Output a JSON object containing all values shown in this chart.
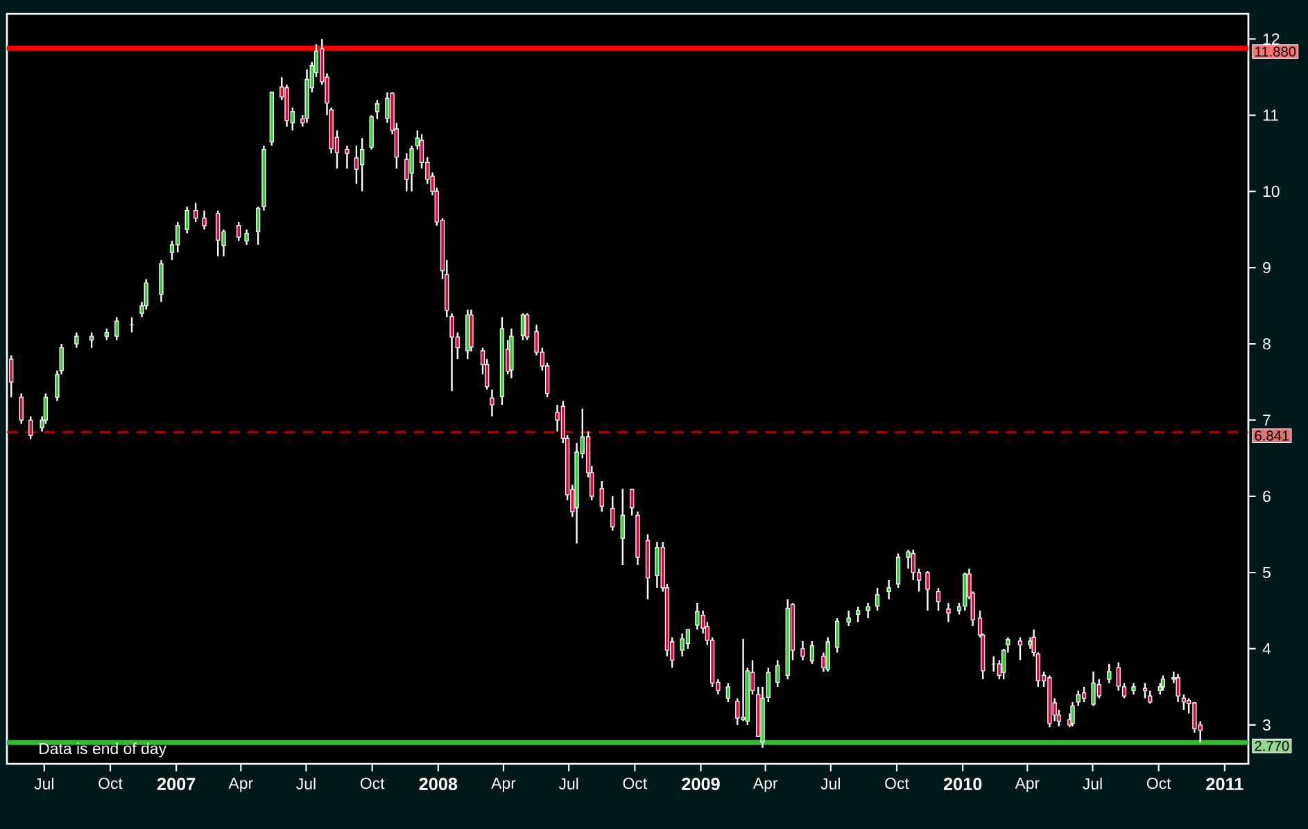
{
  "chart_data": {
    "type": "candlestick",
    "x": [
      "2006-05-16",
      "2006-05-30",
      "2006-06-12",
      "2006-06-28",
      "2006-07-03",
      "2006-07-19",
      "2006-07-25",
      "2006-08-15",
      "2006-09-05",
      "2006-09-26",
      "2006-10-10",
      "2006-10-31",
      "2006-11-14",
      "2006-11-20",
      "2006-12-11",
      "2006-12-26",
      "2007-01-03",
      "2007-01-16",
      "2007-01-28",
      "2007-02-09",
      "2007-02-28",
      "2007-03-08",
      "2007-03-29",
      "2007-04-09",
      "2007-04-25",
      "2007-05-03",
      "2007-05-14",
      "2007-05-28",
      "2007-06-04",
      "2007-06-12",
      "2007-06-26",
      "2007-07-02",
      "2007-07-09",
      "2007-07-15",
      "2007-07-23",
      "2007-07-30",
      "2007-08-05",
      "2007-08-13",
      "2007-08-27",
      "2007-09-09",
      "2007-09-17",
      "2007-09-30",
      "2007-10-08",
      "2007-10-22",
      "2007-10-29",
      "2007-11-04",
      "2007-11-18",
      "2007-11-25",
      "2007-12-03",
      "2007-12-09",
      "2007-12-17",
      "2007-12-24",
      "2007-12-30",
      "2008-01-07",
      "2008-01-13",
      "2008-01-20",
      "2008-01-28",
      "2008-02-11",
      "2008-02-16",
      "2008-03-03",
      "2008-03-09",
      "2008-03-16",
      "2008-03-30",
      "2008-04-07",
      "2008-04-12",
      "2008-04-28",
      "2008-05-04",
      "2008-05-17",
      "2008-05-25",
      "2008-06-01",
      "2008-06-15",
      "2008-06-23",
      "2008-06-29",
      "2008-07-06",
      "2008-07-12",
      "2008-07-20",
      "2008-07-28",
      "2008-08-02",
      "2008-08-16",
      "2008-08-31",
      "2008-09-14",
      "2008-09-27",
      "2008-10-05",
      "2008-10-19",
      "2008-11-01",
      "2008-11-09",
      "2008-11-15",
      "2008-11-22",
      "2008-12-06",
      "2008-12-14",
      "2008-12-27",
      "2009-01-04",
      "2009-01-10",
      "2009-01-17",
      "2009-01-25",
      "2009-02-08",
      "2009-02-21",
      "2009-03-01",
      "2009-03-07",
      "2009-03-14",
      "2009-03-22",
      "2009-03-28",
      "2009-04-05",
      "2009-04-18",
      "2009-05-02",
      "2009-05-09",
      "2009-05-23",
      "2009-06-05",
      "2009-06-21",
      "2009-06-27",
      "2009-07-10",
      "2009-07-26",
      "2009-08-08",
      "2009-08-22",
      "2009-09-04",
      "2009-09-20",
      "2009-10-03",
      "2009-10-17",
      "2009-10-24",
      "2009-11-01",
      "2009-11-13",
      "2009-11-28",
      "2009-12-12",
      "2009-12-27",
      "2010-01-04",
      "2010-01-10",
      "2010-01-15",
      "2010-01-25",
      "2010-01-29",
      "2010-02-13",
      "2010-02-21",
      "2010-02-27",
      "2010-03-05",
      "2010-03-22",
      "2010-04-05",
      "2010-04-10",
      "2010-04-16",
      "2010-04-24",
      "2010-05-02",
      "2010-05-09",
      "2010-05-15",
      "2010-05-30",
      "2010-06-03",
      "2010-06-11",
      "2010-06-19",
      "2010-07-02",
      "2010-07-10",
      "2010-07-24",
      "2010-08-06",
      "2010-08-14",
      "2010-08-27",
      "2010-09-12",
      "2010-09-19",
      "2010-10-03",
      "2010-10-07",
      "2010-10-22",
      "2010-10-28",
      "2010-11-05",
      "2010-11-12",
      "2010-11-20",
      "2010-11-28"
    ],
    "ohlc": [
      [
        7.8,
        7.85,
        7.3,
        7.5
      ],
      [
        7.3,
        7.35,
        6.95,
        7.0
      ],
      [
        7.0,
        7.05,
        6.75,
        6.8
      ],
      [
        6.9,
        7.05,
        6.85,
        7.0
      ],
      [
        7.0,
        7.35,
        6.95,
        7.3
      ],
      [
        7.3,
        7.65,
        7.25,
        7.6
      ],
      [
        7.65,
        8.0,
        7.6,
        7.95
      ],
      [
        8.0,
        8.15,
        7.95,
        8.1
      ],
      [
        8.05,
        8.15,
        7.95,
        8.1
      ],
      [
        8.1,
        8.2,
        8.05,
        8.15
      ],
      [
        8.1,
        8.35,
        8.05,
        8.3
      ],
      [
        8.25,
        8.35,
        8.15,
        8.25
      ],
      [
        8.4,
        8.55,
        8.35,
        8.5
      ],
      [
        8.5,
        8.85,
        8.45,
        8.8
      ],
      [
        8.65,
        9.1,
        8.55,
        9.05
      ],
      [
        9.2,
        9.35,
        9.1,
        9.3
      ],
      [
        9.3,
        9.6,
        9.2,
        9.55
      ],
      [
        9.5,
        9.8,
        9.45,
        9.75
      ],
      [
        9.75,
        9.85,
        9.6,
        9.65
      ],
      [
        9.65,
        9.75,
        9.5,
        9.55
      ],
      [
        9.71,
        9.75,
        9.15,
        9.36
      ],
      [
        9.29,
        9.5,
        9.15,
        9.47
      ],
      [
        9.55,
        9.6,
        9.35,
        9.4
      ],
      [
        9.35,
        9.5,
        9.3,
        9.45
      ],
      [
        9.47,
        9.8,
        9.3,
        9.78
      ],
      [
        9.8,
        10.6,
        9.75,
        10.55
      ],
      [
        10.65,
        11.3,
        10.6,
        11.3
      ],
      [
        11.37,
        11.5,
        11.2,
        11.24
      ],
      [
        11.36,
        11.4,
        10.85,
        10.93
      ],
      [
        10.9,
        11.1,
        10.8,
        11.05
      ],
      [
        10.95,
        11.0,
        10.85,
        10.9
      ],
      [
        10.96,
        11.6,
        10.9,
        11.47
      ],
      [
        11.36,
        11.7,
        11.3,
        11.65
      ],
      [
        11.56,
        11.93,
        11.5,
        11.84
      ],
      [
        11.87,
        12.0,
        11.4,
        11.44
      ],
      [
        11.5,
        11.55,
        11.0,
        11.16
      ],
      [
        11.07,
        11.1,
        10.5,
        10.56
      ],
      [
        10.71,
        10.8,
        10.3,
        10.51
      ],
      [
        10.55,
        10.6,
        10.3,
        10.5
      ],
      [
        10.44,
        10.6,
        10.1,
        10.29
      ],
      [
        10.35,
        10.7,
        10.0,
        10.55
      ],
      [
        10.58,
        11.0,
        10.55,
        10.98
      ],
      [
        11.05,
        11.2,
        10.95,
        11.15
      ],
      [
        10.96,
        11.3,
        10.9,
        11.22
      ],
      [
        11.29,
        11.3,
        10.75,
        10.8
      ],
      [
        10.82,
        10.9,
        10.3,
        10.45
      ],
      [
        10.42,
        10.5,
        10.0,
        10.16
      ],
      [
        10.24,
        10.6,
        10.0,
        10.56
      ],
      [
        10.6,
        10.8,
        10.55,
        10.7
      ],
      [
        10.67,
        10.75,
        10.3,
        10.38
      ],
      [
        10.38,
        10.45,
        10.1,
        10.16
      ],
      [
        10.2,
        10.25,
        9.95,
        10.0
      ],
      [
        10.0,
        10.05,
        9.55,
        9.6
      ],
      [
        9.62,
        9.65,
        8.85,
        8.96
      ],
      [
        8.91,
        9.1,
        8.35,
        8.44
      ],
      [
        8.36,
        8.4,
        7.38,
        8.09
      ],
      [
        8.09,
        8.15,
        7.8,
        7.95
      ],
      [
        7.91,
        8.45,
        7.8,
        8.38
      ],
      [
        8.38,
        8.45,
        7.9,
        7.96
      ],
      [
        7.91,
        7.95,
        7.6,
        7.73
      ],
      [
        7.73,
        7.8,
        7.4,
        7.44
      ],
      [
        7.29,
        7.4,
        7.05,
        7.2
      ],
      [
        7.31,
        8.35,
        7.2,
        8.2
      ],
      [
        7.93,
        8.05,
        7.6,
        7.64
      ],
      [
        7.66,
        8.2,
        7.55,
        8.1
      ],
      [
        8.11,
        8.4,
        8.05,
        8.38
      ],
      [
        8.38,
        8.4,
        8.05,
        8.09
      ],
      [
        8.16,
        8.25,
        7.85,
        7.89
      ],
      [
        7.89,
        7.95,
        7.65,
        7.71
      ],
      [
        7.71,
        7.75,
        7.3,
        7.35
      ],
      [
        7.1,
        7.2,
        6.85,
        7.0
      ],
      [
        7.18,
        7.25,
        6.7,
        6.76
      ],
      [
        6.76,
        6.8,
        5.95,
        6.02
      ],
      [
        6.09,
        6.15,
        5.73,
        5.8
      ],
      [
        5.85,
        6.7,
        5.38,
        6.58
      ],
      [
        6.56,
        7.15,
        6.5,
        6.78
      ],
      [
        6.78,
        6.85,
        6.25,
        6.31
      ],
      [
        6.31,
        6.4,
        5.95,
        6.0
      ],
      [
        6.1,
        6.2,
        5.8,
        5.87
      ],
      [
        5.84,
        6.0,
        5.55,
        5.6
      ],
      [
        5.45,
        6.1,
        5.1,
        5.75
      ],
      [
        6.09,
        6.1,
        5.75,
        5.85
      ],
      [
        5.75,
        5.8,
        5.1,
        5.2
      ],
      [
        5.42,
        5.5,
        4.65,
        4.93
      ],
      [
        4.96,
        5.4,
        4.8,
        5.33
      ],
      [
        5.33,
        5.4,
        4.75,
        4.8
      ],
      [
        4.8,
        4.85,
        3.9,
        3.98
      ],
      [
        4.09,
        4.15,
        3.75,
        3.85
      ],
      [
        3.98,
        4.2,
        3.9,
        4.13
      ],
      [
        4.07,
        4.25,
        4.0,
        4.25
      ],
      [
        4.31,
        4.6,
        4.25,
        4.49
      ],
      [
        4.44,
        4.5,
        4.2,
        4.27
      ],
      [
        4.29,
        4.35,
        4.05,
        4.11
      ],
      [
        4.11,
        4.15,
        3.5,
        3.55
      ],
      [
        3.56,
        3.6,
        3.4,
        3.45
      ],
      [
        3.35,
        3.55,
        3.3,
        3.5
      ],
      [
        3.31,
        3.35,
        3.0,
        3.09
      ],
      [
        3.07,
        4.13,
        3.05,
        3.1
      ],
      [
        3.05,
        3.75,
        3.0,
        3.71
      ],
      [
        3.69,
        3.85,
        3.4,
        3.45
      ],
      [
        3.4,
        3.5,
        2.85,
        2.85
      ],
      [
        2.78,
        3.5,
        2.7,
        3.35
      ],
      [
        3.36,
        3.75,
        3.3,
        3.69
      ],
      [
        3.56,
        3.85,
        3.5,
        3.78
      ],
      [
        3.65,
        4.65,
        3.6,
        4.53
      ],
      [
        4.58,
        4.6,
        3.85,
        3.98
      ],
      [
        4.0,
        4.1,
        3.85,
        3.9
      ],
      [
        3.84,
        4.1,
        3.8,
        4.04
      ],
      [
        3.9,
        3.95,
        3.7,
        3.75
      ],
      [
        3.73,
        4.15,
        3.7,
        4.09
      ],
      [
        4.02,
        4.4,
        3.95,
        4.36
      ],
      [
        4.35,
        4.5,
        4.3,
        4.4
      ],
      [
        4.45,
        4.55,
        4.35,
        4.5
      ],
      [
        4.5,
        4.6,
        4.4,
        4.55
      ],
      [
        4.56,
        4.8,
        4.5,
        4.71
      ],
      [
        4.75,
        4.9,
        4.65,
        4.8
      ],
      [
        4.85,
        5.25,
        4.8,
        5.2
      ],
      [
        5.2,
        5.3,
        5.05,
        5.27
      ],
      [
        5.25,
        5.3,
        4.9,
        5.0
      ],
      [
        5.0,
        5.05,
        4.75,
        4.9
      ],
      [
        5.0,
        5.02,
        4.5,
        4.78
      ],
      [
        4.75,
        4.8,
        4.5,
        4.62
      ],
      [
        4.52,
        4.6,
        4.35,
        4.47
      ],
      [
        4.5,
        4.6,
        4.45,
        4.55
      ],
      [
        4.56,
        5.0,
        4.5,
        4.98
      ],
      [
        4.98,
        5.05,
        4.65,
        4.68
      ],
      [
        4.73,
        4.75,
        4.3,
        4.38
      ],
      [
        4.4,
        4.5,
        4.15,
        4.18
      ],
      [
        4.18,
        4.2,
        3.6,
        3.71
      ],
      [
        3.8,
        3.9,
        3.7,
        3.8
      ],
      [
        3.8,
        3.85,
        3.6,
        3.65
      ],
      [
        3.69,
        4.0,
        3.6,
        3.98
      ],
      [
        4.05,
        4.15,
        3.95,
        4.12
      ],
      [
        4.1,
        4.15,
        3.85,
        4.05
      ],
      [
        4.05,
        4.15,
        4.0,
        4.1
      ],
      [
        4.15,
        4.25,
        3.9,
        3.95
      ],
      [
        3.93,
        3.95,
        3.5,
        3.58
      ],
      [
        3.65,
        3.7,
        3.5,
        3.58
      ],
      [
        3.62,
        3.65,
        2.97,
        3.02
      ],
      [
        3.29,
        3.35,
        3.05,
        3.13
      ],
      [
        3.13,
        3.2,
        2.98,
        3.05
      ],
      [
        3.07,
        3.15,
        2.97,
        3.0
      ],
      [
        3.02,
        3.3,
        2.98,
        3.25
      ],
      [
        3.3,
        3.45,
        3.25,
        3.4
      ],
      [
        3.42,
        3.5,
        3.3,
        3.35
      ],
      [
        3.27,
        3.7,
        3.25,
        3.55
      ],
      [
        3.53,
        3.6,
        3.35,
        3.38
      ],
      [
        3.6,
        3.8,
        3.55,
        3.7
      ],
      [
        3.75,
        3.82,
        3.45,
        3.51
      ],
      [
        3.5,
        3.55,
        3.35,
        3.38
      ],
      [
        3.45,
        3.55,
        3.4,
        3.5
      ],
      [
        3.48,
        3.55,
        3.35,
        3.45
      ],
      [
        3.38,
        3.45,
        3.28,
        3.3
      ],
      [
        3.45,
        3.55,
        3.4,
        3.5
      ],
      [
        3.5,
        3.65,
        3.45,
        3.6
      ],
      [
        3.6,
        3.7,
        3.55,
        3.62
      ],
      [
        3.62,
        3.67,
        3.3,
        3.38
      ],
      [
        3.35,
        3.4,
        3.2,
        3.3
      ],
      [
        3.32,
        3.35,
        3.15,
        3.28
      ],
      [
        3.29,
        3.3,
        2.9,
        2.95
      ],
      [
        3.0,
        3.05,
        2.77,
        2.93
      ]
    ],
    "xlim": [
      "2006-05-10",
      "2011-02-03"
    ],
    "xticks": [
      {
        "value": "2006-07-01",
        "label": "Jul"
      },
      {
        "value": "2006-10-01",
        "label": "Oct"
      },
      {
        "value": "2007-01-01",
        "label": "2007"
      },
      {
        "value": "2007-04-01",
        "label": "Apr"
      },
      {
        "value": "2007-07-01",
        "label": "Jul"
      },
      {
        "value": "2007-10-01",
        "label": "Oct"
      },
      {
        "value": "2008-01-01",
        "label": "2008"
      },
      {
        "value": "2008-04-01",
        "label": "Apr"
      },
      {
        "value": "2008-07-01",
        "label": "Jul"
      },
      {
        "value": "2008-10-01",
        "label": "Oct"
      },
      {
        "value": "2009-01-01",
        "label": "2009"
      },
      {
        "value": "2009-04-01",
        "label": "Apr"
      },
      {
        "value": "2009-07-01",
        "label": "Jul"
      },
      {
        "value": "2009-10-01",
        "label": "Oct"
      },
      {
        "value": "2010-01-01",
        "label": "2010"
      },
      {
        "value": "2010-04-01",
        "label": "Apr"
      },
      {
        "value": "2010-07-01",
        "label": "Jul"
      },
      {
        "value": "2010-10-01",
        "label": "Oct"
      },
      {
        "value": "2011-01-01",
        "label": "2011"
      }
    ],
    "ylim": [
      2.49,
      12.33
    ],
    "yticks": [
      3,
      4,
      5,
      6,
      7,
      8,
      9,
      10,
      11,
      12
    ],
    "ref_lines": [
      {
        "axis": "y",
        "value": 11.88,
        "label": "11.880",
        "color": "#ff0000",
        "line_style": "solid"
      },
      {
        "axis": "y",
        "value": 6.841,
        "label": "6.841",
        "color": "#cc0000",
        "line_style": "dashed"
      },
      {
        "axis": "y",
        "value": 2.77,
        "label": "2.770",
        "color": "#33bb33",
        "line_style": "solid"
      }
    ],
    "annotations": [
      "Data is end of day"
    ]
  }
}
